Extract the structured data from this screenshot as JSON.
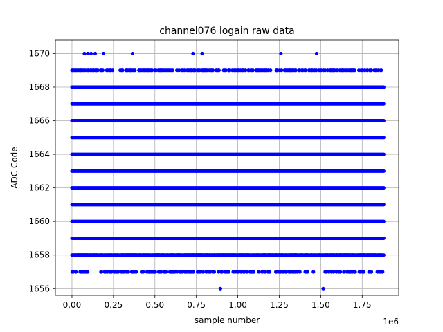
{
  "chart_data": {
    "type": "scatter",
    "title": "channel076 logain raw data",
    "xlabel": "sample number",
    "ylabel": "ADC Code",
    "x_offset_label": "1e6",
    "xlim": [
      -0.1,
      1.97
    ],
    "ylim": [
      1655.6,
      1670.8
    ],
    "x_ticks": [
      0.0,
      0.25,
      0.5,
      0.75,
      1.0,
      1.25,
      1.5,
      1.75
    ],
    "x_tick_labels": [
      "0.00",
      "0.25",
      "0.50",
      "0.75",
      "1.00",
      "1.25",
      "1.50",
      "1.75"
    ],
    "y_ticks": [
      1656,
      1658,
      1660,
      1662,
      1664,
      1666,
      1668,
      1670
    ],
    "y_tick_labels": [
      "1656",
      "1658",
      "1660",
      "1662",
      "1664",
      "1666",
      "1668",
      "1670"
    ],
    "grid": true,
    "marker_color": "#0000ff",
    "x_range_dense": [
      0.0,
      1.88
    ],
    "dense_levels": [
      1658,
      1659,
      1660,
      1661,
      1662,
      1663,
      1664,
      1665,
      1666,
      1667,
      1668
    ],
    "sparse_levels": [
      {
        "y": 1669,
        "density": 0.62
      },
      {
        "y": 1658,
        "density": 0.7
      },
      {
        "y": 1657,
        "density": 0.45
      }
    ],
    "points_1670_x": [
      0.075,
      0.095,
      0.115,
      0.14,
      0.19,
      0.365,
      0.73,
      0.785,
      1.26,
      1.475
    ],
    "points_1656_x": [
      0.895,
      1.515
    ]
  }
}
